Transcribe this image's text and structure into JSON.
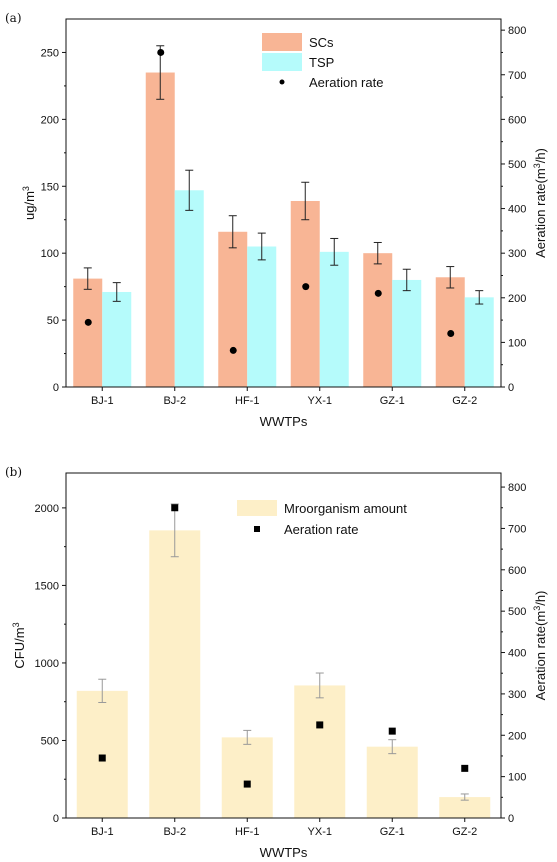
{
  "chart_data": [
    {
      "panel_label": "(a)",
      "type": "bar",
      "categories": [
        "BJ-1",
        "BJ-2",
        "HF-1",
        "YX-1",
        "GZ-1",
        "GZ-2"
      ],
      "series": [
        {
          "name": "SCs",
          "axis": "left",
          "color": "#f8b595",
          "values": [
            81,
            235,
            116,
            139,
            100,
            82
          ],
          "errors": [
            8,
            20,
            12,
            14,
            8,
            8
          ]
        },
        {
          "name": "TSP",
          "axis": "left",
          "color": "#b5fbfb",
          "values": [
            71,
            147,
            105,
            101,
            80,
            67
          ],
          "errors": [
            7,
            15,
            10,
            10,
            8,
            5
          ]
        },
        {
          "name": "Aeration rate",
          "axis": "right",
          "kind": "scatter",
          "marker": "circle",
          "color": "#000000",
          "values": [
            145,
            750,
            82,
            225,
            210,
            120
          ]
        }
      ],
      "xlabel": "WWTPs",
      "ylabel": "ug/m",
      "ylabel_sup": "3",
      "ylim": [
        0,
        275
      ],
      "yticks": [
        0,
        50,
        100,
        150,
        200,
        250
      ],
      "y2label_main": "Aeration rate(m",
      "y2label_sup": "3",
      "y2label_tail": "/h)",
      "y2lim": [
        0,
        825
      ],
      "y2ticks": [
        0,
        100,
        200,
        300,
        400,
        500,
        600,
        700,
        800
      ],
      "legend_position": "top-center"
    },
    {
      "panel_label": "(b)",
      "type": "bar",
      "categories": [
        "BJ-1",
        "BJ-2",
        "HF-1",
        "YX-1",
        "GZ-1",
        "GZ-2"
      ],
      "series": [
        {
          "name": "Mroorganism amount",
          "axis": "left",
          "color": "#fdefc8",
          "values": [
            820,
            1855,
            520,
            855,
            460,
            135
          ],
          "errors": [
            75,
            170,
            45,
            80,
            45,
            20
          ]
        },
        {
          "name": "Aeration rate",
          "axis": "right",
          "kind": "scatter",
          "marker": "square",
          "color": "#000000",
          "values": [
            145,
            750,
            82,
            225,
            210,
            120
          ]
        }
      ],
      "xlabel": "WWTPs",
      "ylabel": "CFU/m",
      "ylabel_sup": "3",
      "ylim": [
        0,
        2225
      ],
      "yticks": [
        0,
        500,
        1000,
        1500,
        2000
      ],
      "y2label_main": "Aeration rate(m",
      "y2label_sup": "3",
      "y2label_tail": "/h)",
      "y2lim": [
        0,
        834
      ],
      "y2ticks": [
        0,
        100,
        200,
        300,
        400,
        500,
        600,
        700,
        800
      ],
      "legend_position": "top-center"
    }
  ]
}
